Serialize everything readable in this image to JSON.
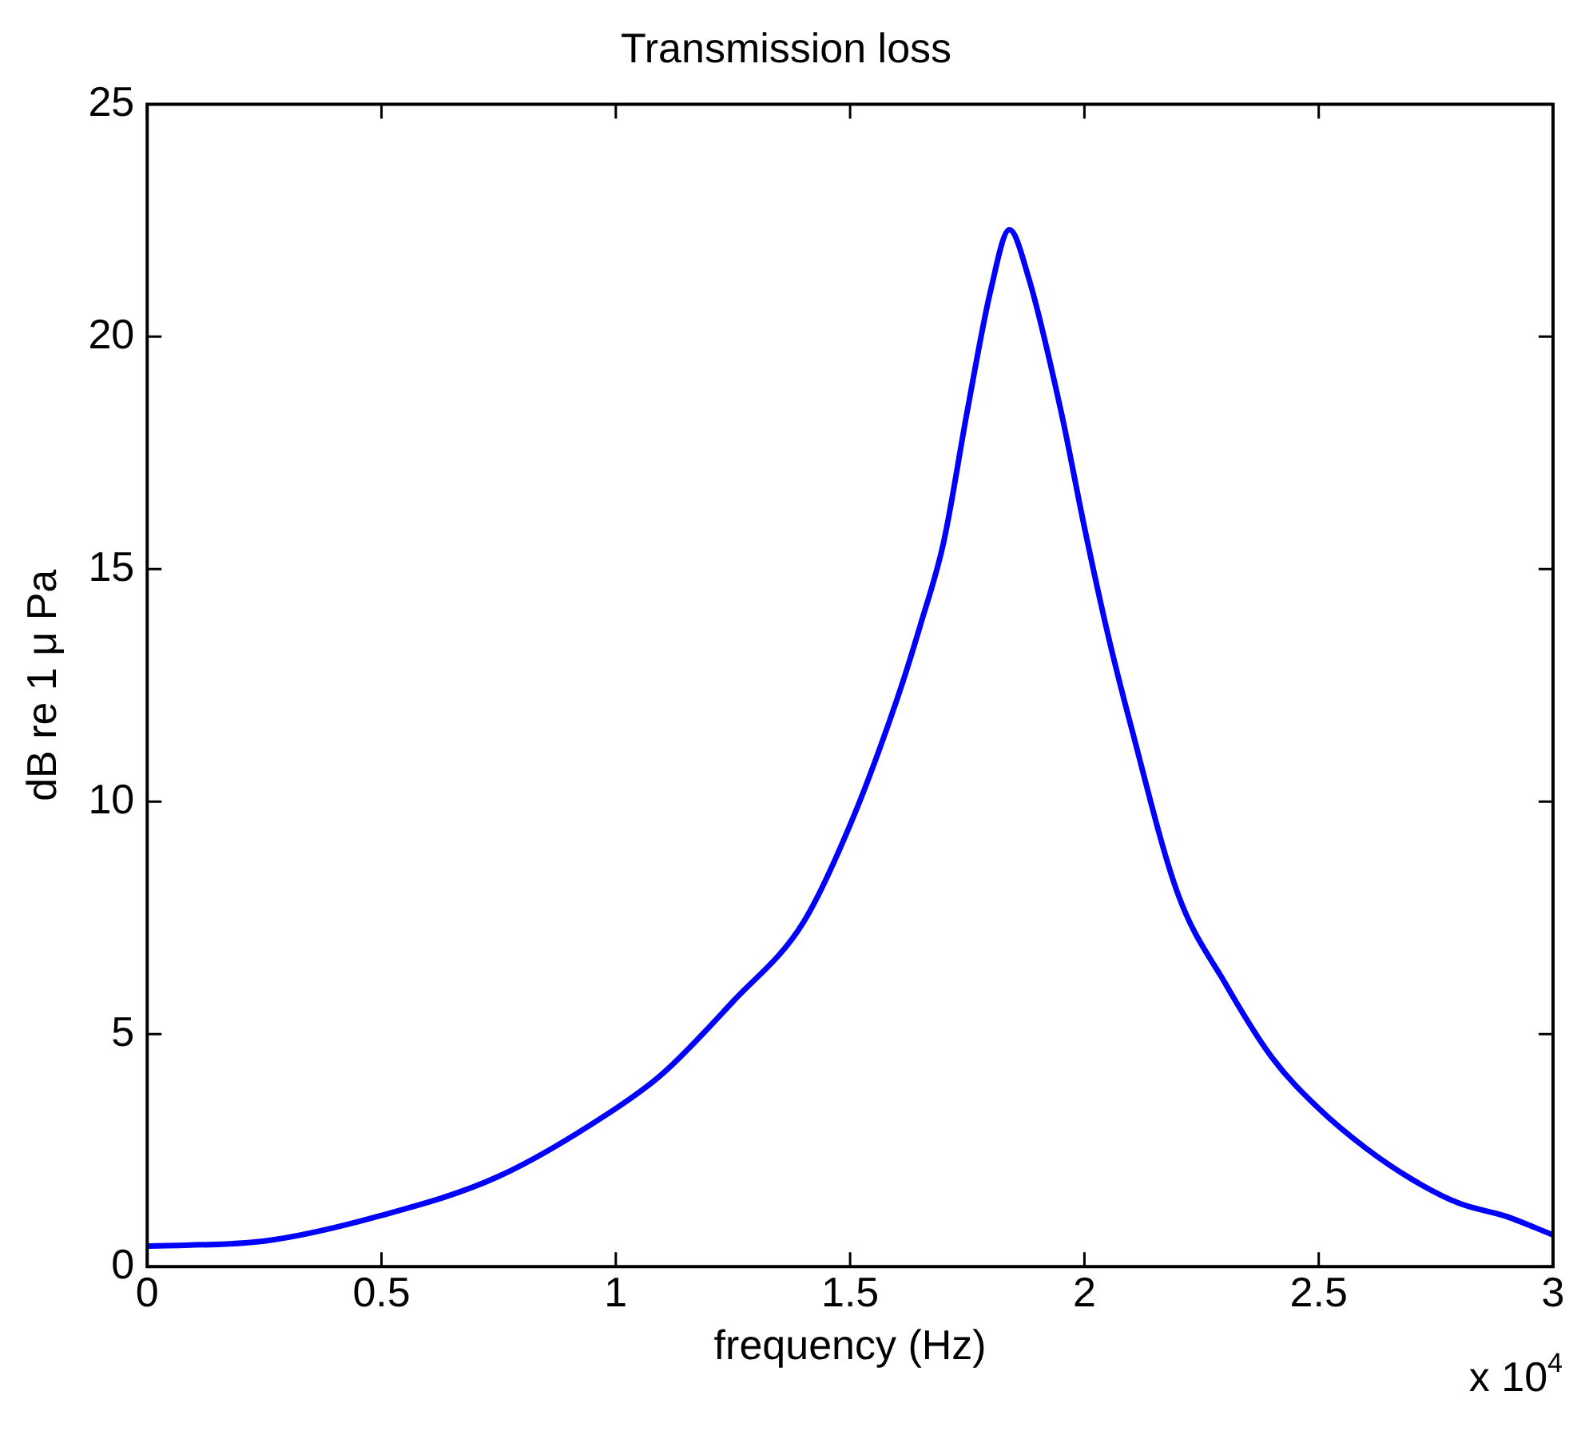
{
  "chart_data": {
    "type": "line",
    "title": "Transmission loss",
    "xlabel": "frequency (Hz)",
    "ylabel": "dB re 1 μ Pa",
    "annotations": [
      "x 10$^{4}$"
    ],
    "x": [
      0,
      0.25,
      0.5,
      0.75,
      1.0,
      1.1,
      1.25,
      1.4,
      1.5,
      1.6,
      1.65,
      1.7,
      1.75,
      1.8,
      1.84,
      1.88,
      1.95,
      2.0,
      2.05,
      2.1,
      2.2,
      2.3,
      2.4,
      2.5,
      2.6,
      2.7,
      2.8,
      2.9,
      3.0
    ],
    "series": [
      {
        "color": "#0000ff",
        "values": [
          0.44,
          0.55,
          1.1,
          1.94,
          3.4,
          4.15,
          5.7,
          7.4,
          9.5,
          12.2,
          13.8,
          15.6,
          18.4,
          21.0,
          22.3,
          21.3,
          18.4,
          15.9,
          13.6,
          11.6,
          8.0,
          6.1,
          4.5,
          3.4,
          2.55,
          1.87,
          1.36,
          1.08,
          0.68
        ]
      }
    ],
    "xlim": [
      0,
      3
    ],
    "xticks": [
      0,
      0.5,
      1,
      1.5,
      2,
      2.5,
      3
    ],
    "ylim": [
      0,
      25
    ],
    "yticks": [
      0,
      5,
      10,
      15,
      20,
      25
    ],
    "grid": false,
    "legend": false,
    "marker": "none",
    "line_style": "solid"
  }
}
